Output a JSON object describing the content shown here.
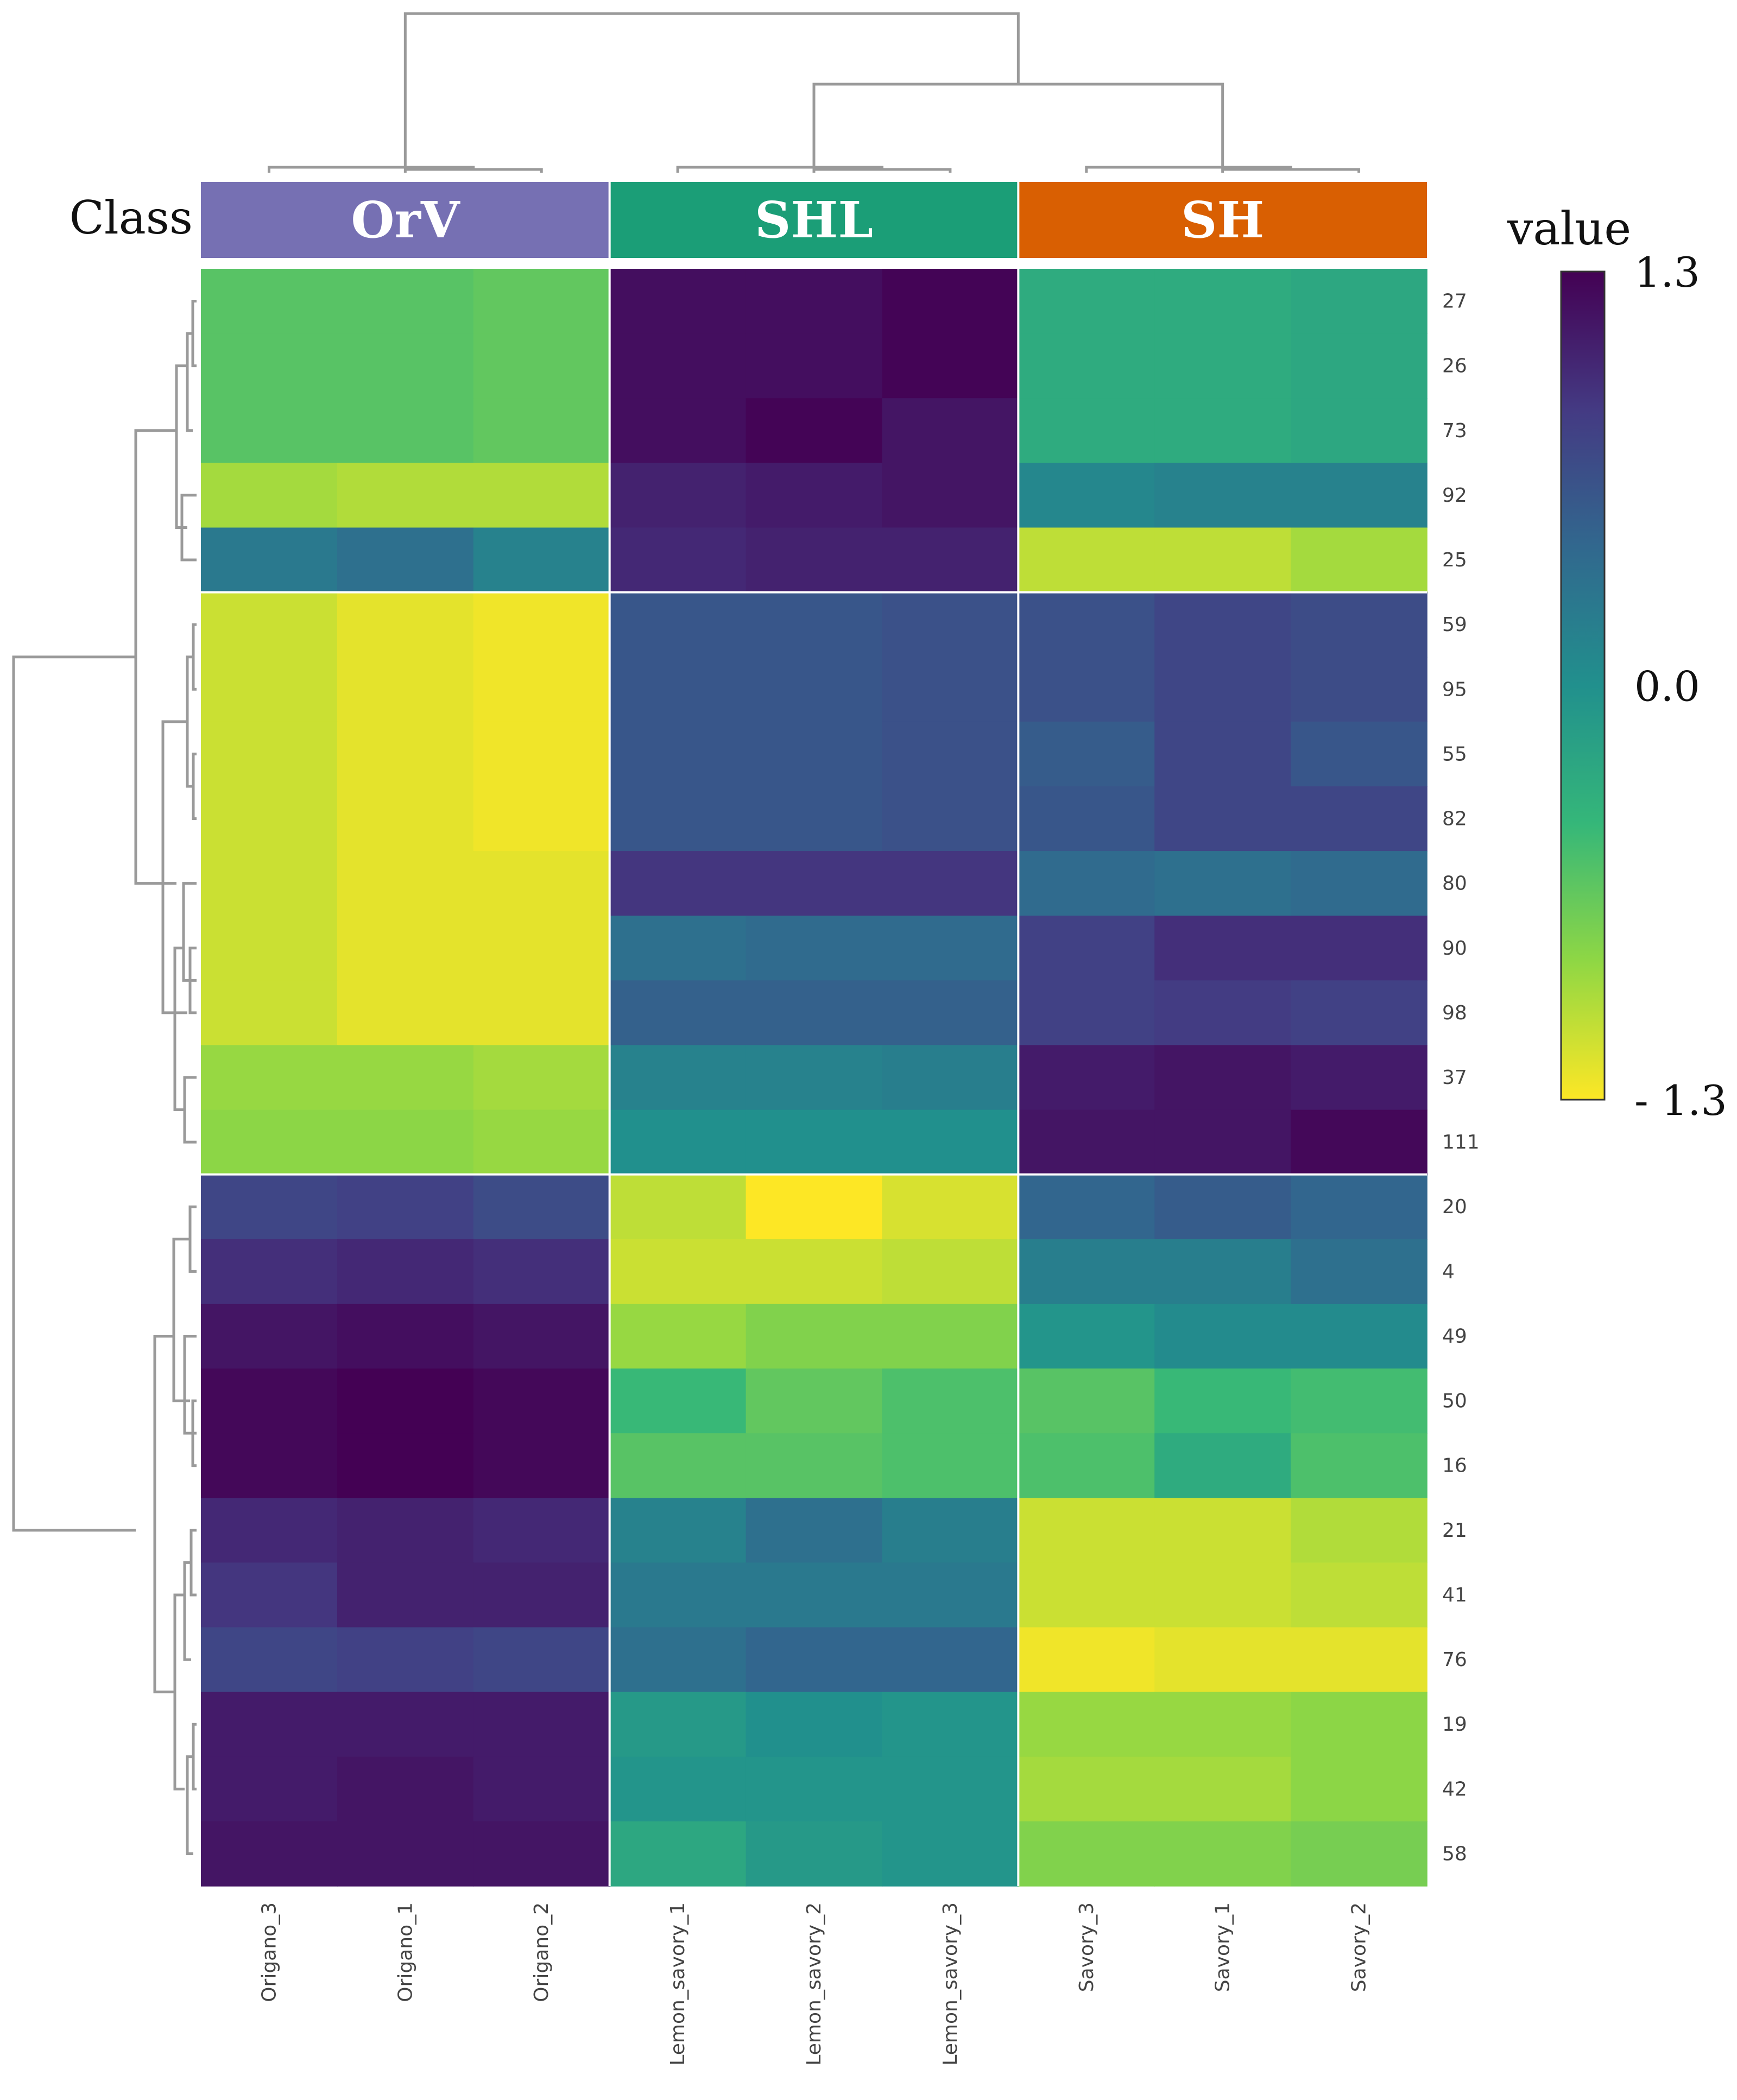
{
  "chart_data": {
    "type": "heatmap",
    "title": "",
    "class_title": "Class",
    "classes": [
      {
        "name": "OrV",
        "color": "#7670b3",
        "columns": [
          "Origano_3",
          "Origano_1",
          "Origano_2"
        ]
      },
      {
        "name": "SHL",
        "color": "#1b9e77",
        "columns": [
          "Lemon_savory_1",
          "Lemon_savory_2",
          "Lemon_savory_3"
        ]
      },
      {
        "name": "SH",
        "color": "#d95f02",
        "columns": [
          "Savory_3",
          "Savory_1",
          "Savory_2"
        ]
      }
    ],
    "columns": [
      "Origano_3",
      "Origano_1",
      "Origano_2",
      "Lemon_savory_1",
      "Lemon_savory_2",
      "Lemon_savory_3",
      "Savory_3",
      "Savory_1",
      "Savory_2"
    ],
    "rows": [
      "27",
      "26",
      "73",
      "92",
      "25",
      "59",
      "95",
      "55",
      "82",
      "80",
      "90",
      "98",
      "37",
      "111",
      "20",
      "4",
      "49",
      "50",
      "16",
      "21",
      "41",
      "76",
      "19",
      "42",
      "58"
    ],
    "values": [
      [
        -0.6,
        -0.6,
        -0.65,
        1.2,
        1.2,
        1.28,
        -0.3,
        -0.3,
        -0.25
      ],
      [
        -0.6,
        -0.6,
        -0.65,
        1.2,
        1.2,
        1.28,
        -0.3,
        -0.3,
        -0.25
      ],
      [
        -0.6,
        -0.6,
        -0.65,
        1.2,
        1.28,
        1.15,
        -0.3,
        -0.3,
        -0.25
      ],
      [
        -0.95,
        -1.0,
        -1.0,
        1.05,
        1.1,
        1.15,
        0.1,
        0.15,
        0.15
      ],
      [
        0.25,
        0.35,
        0.15,
        1.0,
        1.05,
        1.05,
        -1.05,
        -1.05,
        -0.95
      ],
      [
        -1.1,
        -1.2,
        -1.25,
        0.6,
        0.6,
        0.65,
        0.65,
        0.75,
        0.7
      ],
      [
        -1.1,
        -1.2,
        -1.25,
        0.6,
        0.6,
        0.65,
        0.65,
        0.75,
        0.7
      ],
      [
        -1.1,
        -1.2,
        -1.25,
        0.6,
        0.6,
        0.65,
        0.55,
        0.75,
        0.6
      ],
      [
        -1.1,
        -1.2,
        -1.25,
        0.6,
        0.6,
        0.65,
        0.6,
        0.75,
        0.75
      ],
      [
        -1.1,
        -1.2,
        -1.2,
        0.9,
        0.9,
        0.9,
        0.4,
        0.35,
        0.4
      ],
      [
        -1.1,
        -1.2,
        -1.2,
        0.35,
        0.4,
        0.4,
        0.8,
        0.95,
        0.95
      ],
      [
        -1.1,
        -1.2,
        -1.2,
        0.5,
        0.5,
        0.5,
        0.8,
        0.85,
        0.8
      ],
      [
        -0.9,
        -0.9,
        -0.95,
        0.15,
        0.15,
        0.2,
        1.1,
        1.15,
        1.1
      ],
      [
        -0.85,
        -0.85,
        -0.9,
        0.0,
        0.0,
        0.0,
        1.15,
        1.15,
        1.25
      ],
      [
        0.75,
        0.8,
        0.7,
        -1.05,
        -1.3,
        -1.15,
        0.45,
        0.55,
        0.45
      ],
      [
        0.95,
        1.0,
        0.95,
        -1.1,
        -1.1,
        -1.05,
        0.2,
        0.2,
        0.35
      ],
      [
        1.15,
        1.2,
        1.15,
        -0.9,
        -0.8,
        -0.8,
        -0.05,
        0.05,
        0.05
      ],
      [
        1.25,
        1.3,
        1.25,
        -0.45,
        -0.65,
        -0.55,
        -0.6,
        -0.45,
        -0.5
      ],
      [
        1.25,
        1.3,
        1.25,
        -0.6,
        -0.6,
        -0.55,
        -0.55,
        -0.3,
        -0.55
      ],
      [
        1.0,
        1.05,
        1.0,
        0.15,
        0.35,
        0.2,
        -1.1,
        -1.1,
        -1.0
      ],
      [
        0.9,
        1.05,
        1.05,
        0.25,
        0.25,
        0.25,
        -1.1,
        -1.1,
        -1.05
      ],
      [
        0.75,
        0.8,
        0.75,
        0.35,
        0.45,
        0.45,
        -1.25,
        -1.2,
        -1.2
      ],
      [
        1.1,
        1.1,
        1.1,
        -0.1,
        0.0,
        -0.05,
        -0.9,
        -0.9,
        -0.85
      ],
      [
        1.1,
        1.15,
        1.1,
        -0.05,
        -0.05,
        -0.05,
        -0.95,
        -0.95,
        -0.85
      ],
      [
        1.15,
        1.15,
        1.15,
        -0.25,
        -0.1,
        -0.05,
        -0.8,
        -0.8,
        -0.75
      ]
    ],
    "legend": {
      "title": "value",
      "ticks": [
        "1.3",
        "0.0",
        "- 1.3"
      ],
      "range": [
        -1.3,
        1.3
      ],
      "colors": [
        "#fde725",
        "#8fd744",
        "#35b779",
        "#21908d",
        "#31688e",
        "#443a83",
        "#440154"
      ]
    }
  }
}
